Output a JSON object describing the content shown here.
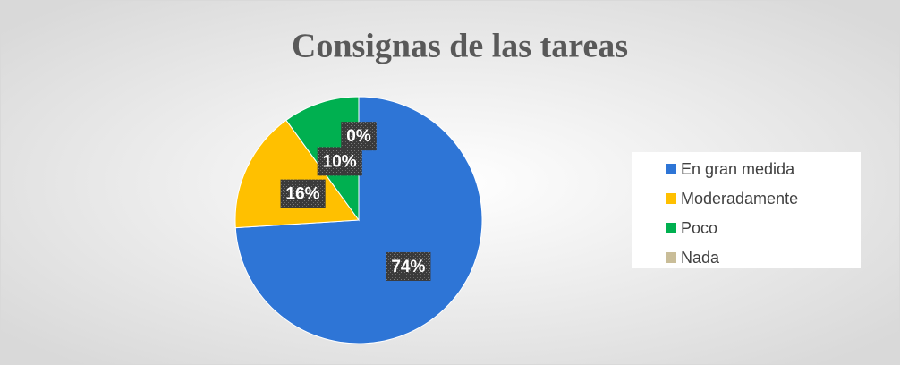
{
  "chart_data": {
    "type": "pie",
    "title": "Consignas de las tareas",
    "categories": [
      "En gran medida",
      "Moderadamente",
      "Poco",
      "Nada"
    ],
    "values": [
      74,
      16,
      10,
      0
    ],
    "value_labels": [
      "74%",
      "16%",
      "10%",
      "0%"
    ],
    "colors": [
      "#2e75d6",
      "#ffc000",
      "#00b050",
      "#c9bd98"
    ],
    "legend": "right"
  }
}
